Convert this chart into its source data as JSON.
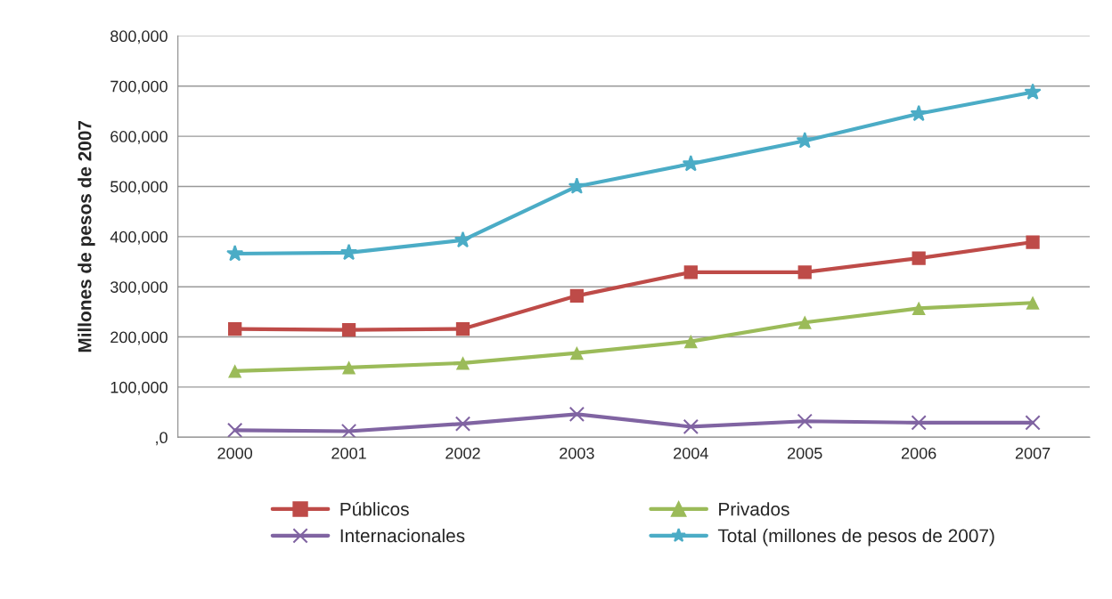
{
  "chart_data": {
    "type": "line",
    "ylabel": "Millones de pesos de 2007",
    "categories": [
      "2000",
      "2001",
      "2002",
      "2003",
      "2004",
      "2005",
      "2006",
      "2007"
    ],
    "series": [
      {
        "name": "Públicos",
        "color": "#be4b48",
        "marker": "square",
        "values": [
          216000,
          214000,
          216000,
          282000,
          329000,
          329000,
          357000,
          389000
        ]
      },
      {
        "name": "Privados",
        "color": "#9bbb59",
        "marker": "triangle",
        "values": [
          132000,
          139000,
          148000,
          168000,
          191000,
          229000,
          257000,
          268000
        ]
      },
      {
        "name": "Internacionales",
        "color": "#8064a2",
        "marker": "cross",
        "values": [
          14000,
          12000,
          27000,
          46000,
          21000,
          32000,
          29000,
          29000
        ]
      },
      {
        "name": "Total (millones de pesos de 2007)",
        "color": "#4bacc6",
        "marker": "star",
        "values": [
          366000,
          368000,
          393000,
          500000,
          545000,
          591000,
          645000,
          688000
        ]
      }
    ],
    "ylim": [
      0,
      800000
    ],
    "yticks": [
      {
        "value": 0,
        "label": ",0"
      },
      {
        "value": 100000,
        "label": "100,000"
      },
      {
        "value": 200000,
        "label": "200,000"
      },
      {
        "value": 300000,
        "label": "300,000"
      },
      {
        "value": 400000,
        "label": "400,000"
      },
      {
        "value": 500000,
        "label": "500,000"
      },
      {
        "value": 600000,
        "label": "600,000"
      },
      {
        "value": 700000,
        "label": "700,000"
      },
      {
        "value": 800000,
        "label": "800,000"
      }
    ],
    "grid": "y",
    "legend": "bottom",
    "line_style": "solid"
  }
}
